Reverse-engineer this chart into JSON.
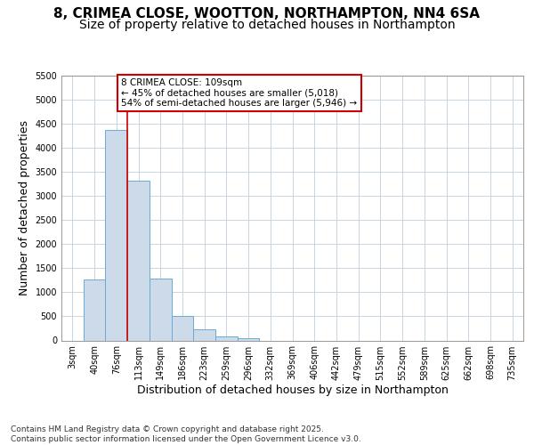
{
  "title_line1": "8, CRIMEA CLOSE, WOOTTON, NORTHAMPTON, NN4 6SA",
  "title_line2": "Size of property relative to detached houses in Northampton",
  "xlabel": "Distribution of detached houses by size in Northampton",
  "ylabel": "Number of detached properties",
  "categories": [
    "3sqm",
    "40sqm",
    "76sqm",
    "113sqm",
    "149sqm",
    "186sqm",
    "223sqm",
    "259sqm",
    "296sqm",
    "332sqm",
    "369sqm",
    "406sqm",
    "442sqm",
    "479sqm",
    "515sqm",
    "552sqm",
    "589sqm",
    "625sqm",
    "662sqm",
    "698sqm",
    "735sqm"
  ],
  "values": [
    0,
    1270,
    4380,
    3310,
    1280,
    500,
    235,
    85,
    40,
    0,
    0,
    0,
    0,
    0,
    0,
    0,
    0,
    0,
    0,
    0,
    0
  ],
  "bar_color": "#ccdaea",
  "bar_edge_color": "#6aaad4",
  "grid_color": "#c8d4e0",
  "vline_color": "#cc0000",
  "vline_x": 2.5,
  "annotation_text": "8 CRIMEA CLOSE: 109sqm\n← 45% of detached houses are smaller (5,018)\n54% of semi-detached houses are larger (5,946) →",
  "annotation_box_facecolor": "#ffffff",
  "annotation_box_edgecolor": "#cc0000",
  "ylim_max": 5500,
  "yticks": [
    0,
    500,
    1000,
    1500,
    2000,
    2500,
    3000,
    3500,
    4000,
    4500,
    5000,
    5500
  ],
  "footnote": "Contains HM Land Registry data © Crown copyright and database right 2025.\nContains public sector information licensed under the Open Government Licence v3.0.",
  "fig_facecolor": "#ffffff",
  "plot_facecolor": "#ffffff",
  "title_fontsize": 11,
  "subtitle_fontsize": 10,
  "axis_label_fontsize": 9,
  "tick_fontsize": 7,
  "annot_fontsize": 7.5,
  "footnote_fontsize": 6.5
}
